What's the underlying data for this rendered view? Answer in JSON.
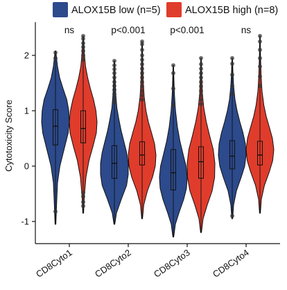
{
  "chart_data": {
    "type": "violin",
    "title": "",
    "xlabel": "",
    "ylabel": "Cytotoxicity Score",
    "ylim": [
      -1.45,
      2.45
    ],
    "y_ticks": [
      -1,
      0,
      1,
      2
    ],
    "categories": [
      "CD8Cyto1",
      "CD8Cyto2",
      "CD8Cyto3",
      "CD8Cyto4"
    ],
    "significance": [
      "ns",
      "p<0.001",
      "p<0.001",
      "ns"
    ],
    "legend_position": "top",
    "series": [
      {
        "name": "ALOX15B low (n=5)",
        "color": "#2c4a8c",
        "groups": [
          {
            "min": -1.05,
            "q1": 0.38,
            "median": 0.72,
            "q3": 1.02,
            "max": 2.08,
            "outliers": [
              -0.82,
              1.95,
              2.05
            ],
            "density": [
              [
                -1.05,
                0.03
              ],
              [
                -0.7,
                0.08
              ],
              [
                -0.3,
                0.15
              ],
              [
                0.0,
                0.32
              ],
              [
                0.3,
                0.62
              ],
              [
                0.6,
                0.92
              ],
              [
                0.8,
                1.0
              ],
              [
                1.0,
                0.96
              ],
              [
                1.2,
                0.82
              ],
              [
                1.4,
                0.55
              ],
              [
                1.6,
                0.3
              ],
              [
                1.8,
                0.15
              ],
              [
                2.0,
                0.06
              ],
              [
                2.08,
                0.02
              ]
            ]
          },
          {
            "min": -1.05,
            "q1": -0.22,
            "median": 0.05,
            "q3": 0.37,
            "max": 1.9,
            "outliers": [
              1.15,
              1.22,
              1.3,
              1.38,
              1.45,
              1.52,
              1.6,
              1.68,
              1.75,
              1.82,
              1.9
            ],
            "density": [
              [
                -1.05,
                0.03
              ],
              [
                -0.85,
                0.15
              ],
              [
                -0.6,
                0.5
              ],
              [
                -0.35,
                0.88
              ],
              [
                -0.15,
                1.0
              ],
              [
                0.05,
                1.0
              ],
              [
                0.25,
                0.88
              ],
              [
                0.45,
                0.68
              ],
              [
                0.65,
                0.48
              ],
              [
                0.85,
                0.32
              ],
              [
                1.05,
                0.18
              ],
              [
                1.3,
                0.1
              ],
              [
                1.6,
                0.05
              ],
              [
                1.9,
                0.02
              ]
            ]
          },
          {
            "min": -1.28,
            "q1": -0.43,
            "median": -0.12,
            "q3": 0.3,
            "max": 1.82,
            "outliers": [
              1.1,
              1.4,
              1.68,
              1.82
            ],
            "density": [
              [
                -1.28,
                0.03
              ],
              [
                -1.05,
                0.15
              ],
              [
                -0.85,
                0.4
              ],
              [
                -0.6,
                0.75
              ],
              [
                -0.4,
                0.95
              ],
              [
                -0.2,
                1.0
              ],
              [
                0.0,
                0.92
              ],
              [
                0.2,
                0.72
              ],
              [
                0.45,
                0.48
              ],
              [
                0.7,
                0.3
              ],
              [
                1.0,
                0.16
              ],
              [
                1.3,
                0.08
              ],
              [
                1.6,
                0.04
              ],
              [
                1.82,
                0.02
              ]
            ]
          },
          {
            "min": -0.95,
            "q1": -0.05,
            "median": 0.18,
            "q3": 0.46,
            "max": 1.95,
            "outliers": [
              -0.9,
              1.3,
              1.45,
              1.65,
              1.85,
              1.95
            ],
            "density": [
              [
                -0.95,
                0.03
              ],
              [
                -0.7,
                0.1
              ],
              [
                -0.45,
                0.3
              ],
              [
                -0.2,
                0.65
              ],
              [
                0.0,
                0.9
              ],
              [
                0.2,
                1.0
              ],
              [
                0.4,
                0.95
              ],
              [
                0.6,
                0.78
              ],
              [
                0.8,
                0.55
              ],
              [
                1.0,
                0.35
              ],
              [
                1.2,
                0.2
              ],
              [
                1.45,
                0.1
              ],
              [
                1.7,
                0.05
              ],
              [
                1.95,
                0.02
              ]
            ]
          }
        ]
      },
      {
        "name": "ALOX15B high (n=8)",
        "color": "#e03c2c",
        "groups": [
          {
            "min": -0.85,
            "q1": 0.42,
            "median": 0.68,
            "q3": 1.0,
            "max": 2.35,
            "outliers": [
              -0.72,
              -0.65,
              -0.55,
              -0.48,
              1.92,
              2.0,
              2.08,
              2.15,
              2.22,
              2.3,
              2.35
            ],
            "density": [
              [
                -0.85,
                0.03
              ],
              [
                -0.55,
                0.08
              ],
              [
                -0.2,
                0.2
              ],
              [
                0.1,
                0.42
              ],
              [
                0.35,
                0.7
              ],
              [
                0.6,
                0.95
              ],
              [
                0.8,
                1.0
              ],
              [
                1.0,
                0.92
              ],
              [
                1.2,
                0.75
              ],
              [
                1.4,
                0.52
              ],
              [
                1.6,
                0.32
              ],
              [
                1.8,
                0.17
              ],
              [
                2.05,
                0.08
              ],
              [
                2.35,
                0.02
              ]
            ]
          },
          {
            "min": -0.95,
            "q1": 0.02,
            "median": 0.2,
            "q3": 0.44,
            "max": 2.25,
            "outliers": [
              1.2,
              1.28,
              1.36,
              1.44,
              1.52,
              1.6,
              1.68,
              1.76,
              1.84,
              1.92,
              2.0,
              2.1,
              2.2,
              2.25
            ],
            "density": [
              [
                -0.95,
                0.03
              ],
              [
                -0.7,
                0.12
              ],
              [
                -0.45,
                0.38
              ],
              [
                -0.2,
                0.75
              ],
              [
                0.0,
                0.95
              ],
              [
                0.2,
                1.0
              ],
              [
                0.4,
                0.9
              ],
              [
                0.6,
                0.68
              ],
              [
                0.8,
                0.45
              ],
              [
                1.0,
                0.28
              ],
              [
                1.25,
                0.15
              ],
              [
                1.55,
                0.08
              ],
              [
                1.9,
                0.04
              ],
              [
                2.25,
                0.02
              ]
            ]
          },
          {
            "min": -1.2,
            "q1": -0.22,
            "median": 0.08,
            "q3": 0.35,
            "max": 1.95,
            "outliers": [
              1.12,
              1.2,
              1.28,
              1.36,
              1.44,
              1.52,
              1.6,
              1.68,
              1.76,
              1.84,
              1.95
            ],
            "density": [
              [
                -1.2,
                0.03
              ],
              [
                -0.95,
                0.15
              ],
              [
                -0.7,
                0.45
              ],
              [
                -0.45,
                0.8
              ],
              [
                -0.2,
                0.98
              ],
              [
                0.05,
                1.0
              ],
              [
                0.3,
                0.88
              ],
              [
                0.55,
                0.62
              ],
              [
                0.8,
                0.38
              ],
              [
                1.05,
                0.2
              ],
              [
                1.3,
                0.1
              ],
              [
                1.6,
                0.05
              ],
              [
                1.95,
                0.02
              ]
            ]
          },
          {
            "min": -0.85,
            "q1": 0.02,
            "median": 0.2,
            "q3": 0.45,
            "max": 2.35,
            "outliers": [
              1.45,
              1.62,
              1.8,
              1.95,
              2.1,
              2.25,
              2.35
            ],
            "density": [
              [
                -0.85,
                0.03
              ],
              [
                -0.6,
                0.1
              ],
              [
                -0.35,
                0.32
              ],
              [
                -0.1,
                0.68
              ],
              [
                0.1,
                0.92
              ],
              [
                0.3,
                1.0
              ],
              [
                0.5,
                0.9
              ],
              [
                0.7,
                0.68
              ],
              [
                0.9,
                0.45
              ],
              [
                1.1,
                0.28
              ],
              [
                1.35,
                0.15
              ],
              [
                1.65,
                0.08
              ],
              [
                2.0,
                0.04
              ],
              [
                2.35,
                0.02
              ]
            ]
          }
        ]
      }
    ]
  }
}
